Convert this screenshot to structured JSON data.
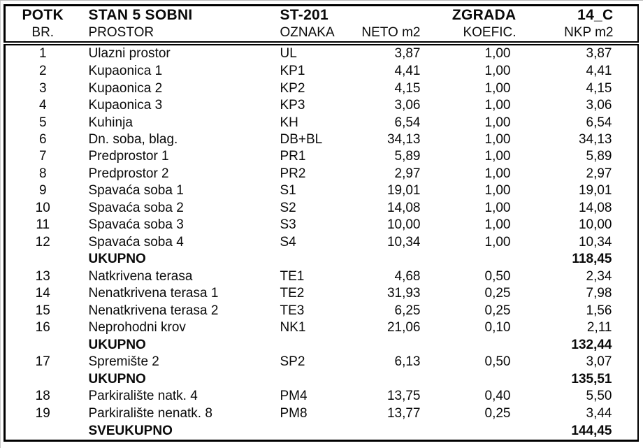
{
  "page": {
    "title_row": {
      "potk": "POTK",
      "stan": "STAN 5 SOBNI",
      "st_code": "ST-201",
      "neto": "",
      "zgrada": "ZGRADA",
      "building_code": "14_C"
    },
    "column_headers": {
      "br": "BR.",
      "prostor": "PROSTOR",
      "oznaka": "OZNAKA",
      "neto": "NETO m2",
      "koefic": "KOEFIC.",
      "nkp": "NKP m2"
    },
    "rows": [
      {
        "type": "item",
        "br": "1",
        "prostor": "Ulazni prostor",
        "oznaka": "UL",
        "neto": "3,87",
        "koef": "1,00",
        "nkp": "3,87"
      },
      {
        "type": "item",
        "br": "2",
        "prostor": "Kupaonica 1",
        "oznaka": "KP1",
        "neto": "4,41",
        "koef": "1,00",
        "nkp": "4,41"
      },
      {
        "type": "item",
        "br": "3",
        "prostor": "Kupaonica 2",
        "oznaka": "KP2",
        "neto": "4,15",
        "koef": "1,00",
        "nkp": "4,15"
      },
      {
        "type": "item",
        "br": "4",
        "prostor": "Kupaonica 3",
        "oznaka": "KP3",
        "neto": "3,06",
        "koef": "1,00",
        "nkp": "3,06"
      },
      {
        "type": "item",
        "br": "5",
        "prostor": "Kuhinja",
        "oznaka": "KH",
        "neto": "6,54",
        "koef": "1,00",
        "nkp": "6,54"
      },
      {
        "type": "item",
        "br": "6",
        "prostor": "Dn. soba, blag.",
        "oznaka": "DB+BL",
        "neto": "34,13",
        "koef": "1,00",
        "nkp": "34,13"
      },
      {
        "type": "item",
        "br": "7",
        "prostor": "Predprostor 1",
        "oznaka": "PR1",
        "neto": "5,89",
        "koef": "1,00",
        "nkp": "5,89"
      },
      {
        "type": "item",
        "br": "8",
        "prostor": "Predprostor 2",
        "oznaka": "PR2",
        "neto": "2,97",
        "koef": "1,00",
        "nkp": "2,97"
      },
      {
        "type": "item",
        "br": "9",
        "prostor": "Spavaća soba 1",
        "oznaka": "S1",
        "neto": "19,01",
        "koef": "1,00",
        "nkp": "19,01"
      },
      {
        "type": "item",
        "br": "10",
        "prostor": "Spavaća soba 2",
        "oznaka": "S2",
        "neto": "14,08",
        "koef": "1,00",
        "nkp": "14,08"
      },
      {
        "type": "item",
        "br": "11",
        "prostor": "Spavaća soba 3",
        "oznaka": "S3",
        "neto": "10,00",
        "koef": "1,00",
        "nkp": "10,00"
      },
      {
        "type": "item",
        "br": "12",
        "prostor": "Spavaća soba 4",
        "oznaka": "S4",
        "neto": "10,34",
        "koef": "1,00",
        "nkp": "10,34"
      },
      {
        "type": "subtotal",
        "br": "",
        "prostor": "UKUPNO",
        "oznaka": "",
        "neto": "",
        "koef": "",
        "nkp": "118,45"
      },
      {
        "type": "item",
        "br": "13",
        "prostor": "Natkrivena terasa",
        "oznaka": "TE1",
        "neto": "4,68",
        "koef": "0,50",
        "nkp": "2,34"
      },
      {
        "type": "item",
        "br": "14",
        "prostor": "Nenatkrivena terasa 1",
        "oznaka": "TE2",
        "neto": "31,93",
        "koef": "0,25",
        "nkp": "7,98"
      },
      {
        "type": "item",
        "br": "15",
        "prostor": "Nenatkrivena terasa 2",
        "oznaka": "TE3",
        "neto": "6,25",
        "koef": "0,25",
        "nkp": "1,56"
      },
      {
        "type": "item",
        "br": "16",
        "prostor": "Neprohodni krov",
        "oznaka": "NK1",
        "neto": "21,06",
        "koef": "0,10",
        "nkp": "2,11"
      },
      {
        "type": "subtotal",
        "br": "",
        "prostor": "UKUPNO",
        "oznaka": "",
        "neto": "",
        "koef": "",
        "nkp": "132,44"
      },
      {
        "type": "item",
        "br": "17",
        "prostor": "Spremište 2",
        "oznaka": "SP2",
        "neto": "6,13",
        "koef": "0,50",
        "nkp": "3,07"
      },
      {
        "type": "subtotal",
        "br": "",
        "prostor": "UKUPNO",
        "oznaka": "",
        "neto": "",
        "koef": "",
        "nkp": "135,51"
      },
      {
        "type": "item",
        "br": "18",
        "prostor": "Parkiralište natk. 4",
        "oznaka": "PM4",
        "neto": "13,75",
        "koef": "0,40",
        "nkp": "5,50"
      },
      {
        "type": "item",
        "br": "19",
        "prostor": "Parkiralište nenatk. 8",
        "oznaka": "PM8",
        "neto": "13,77",
        "koef": "0,25",
        "nkp": "3,44"
      },
      {
        "type": "grandtotal",
        "br": "",
        "prostor": "SVEUKUPNO",
        "oznaka": "",
        "neto": "",
        "koef": "",
        "nkp": "144,45"
      }
    ]
  },
  "colors": {
    "border": "#000000",
    "text": "#0a0a0a",
    "background": "#ffffff",
    "page_edge_line": "#b9b9b9"
  }
}
